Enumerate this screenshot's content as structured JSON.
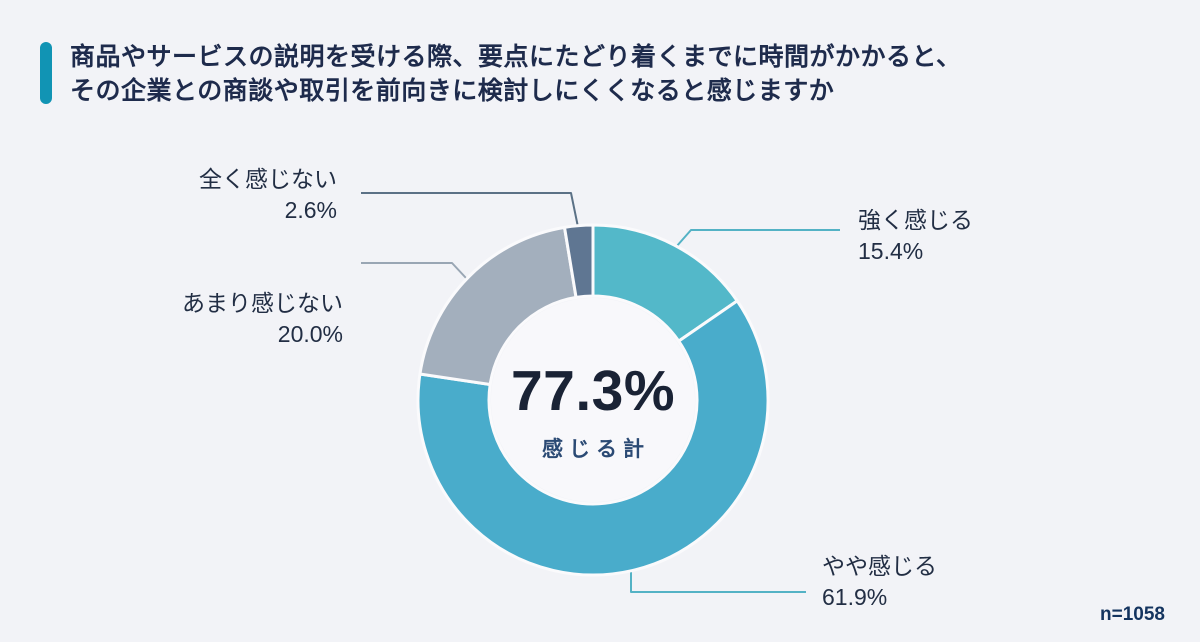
{
  "header": {
    "title_line1": "商品やサービスの説明を受ける際、要点にたどり着くまでに時間がかかると、",
    "title_line2": "その企業との商談や取引を前向きに検討しにくくなると感じますか"
  },
  "chart_data": {
    "type": "pie",
    "variant": "donut",
    "title": "商品やサービスの説明を受ける際、要点にたどり着くまでに時間がかかると、その企業との商談や取引を前向きに検討しにくくなると感じますか",
    "categories": [
      "強く感じる",
      "やや感じる",
      "あまり感じない",
      "全く感じない"
    ],
    "values": [
      15.4,
      61.9,
      20.0,
      2.6
    ],
    "segments": [
      {
        "label": "強く感じる",
        "value": 15.4,
        "display": "15.4%",
        "color": "#53B8C9",
        "line_color": "#54B2C5"
      },
      {
        "label": "やや感じる",
        "value": 61.9,
        "display": "61.9%",
        "color": "#49ACCB",
        "line_color": "#54B2C5"
      },
      {
        "label": "あまり感じない",
        "value": 20.0,
        "display": "20.0%",
        "color": "#A3AFBD",
        "line_color": "#99A6B4"
      },
      {
        "label": "全く感じない",
        "value": 2.6,
        "display": "2.6%",
        "color": "#5F7692",
        "line_color": "#5B7186"
      }
    ],
    "center": {
      "value": "77.3%",
      "label": "感じる計"
    },
    "sample_size": "n=1058",
    "start_angle_deg": 0,
    "direction": "clockwise",
    "legend_position": "callout-labels"
  },
  "colors": {
    "background": "#F2F3F7",
    "accent_bar": "#1194B4",
    "title_text": "#1E2B4C",
    "label_text": "#222E44",
    "center_value_text": "#1A2335",
    "center_label_text": "#2B4A74",
    "sample_text": "#14345F",
    "donut_gap": "#FAFAFC",
    "hole_fill": "#F8F8FB"
  }
}
